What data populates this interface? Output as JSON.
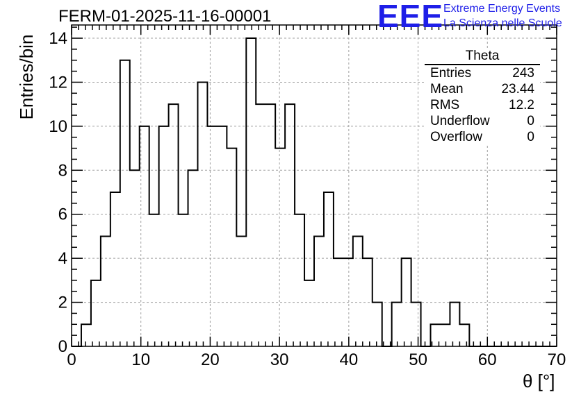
{
  "header": {
    "title": "FERM-01-2025-11-16-00001",
    "logo_mark": "EEE",
    "logo_line1": "Extreme Energy Events",
    "logo_line2": "La Scienza nelle Scuole",
    "logo_color": "#1e1ee8"
  },
  "stats_box": {
    "name": "Theta",
    "rows": [
      {
        "label": "Entries",
        "value": "243"
      },
      {
        "label": "Mean",
        "value": "23.44"
      },
      {
        "label": "RMS",
        "value": "12.2"
      },
      {
        "label": "Underflow",
        "value": "0"
      },
      {
        "label": "Overflow",
        "value": "0"
      }
    ]
  },
  "chart_data": {
    "type": "histogram",
    "title": "FERM-01-2025-11-16-00001",
    "xlabel": "θ [°]",
    "ylabel": "Entries/bin",
    "xlim": [
      0,
      70
    ],
    "ylim": [
      0,
      14.6
    ],
    "grid": true,
    "bin_width": 1.4,
    "x_ticks": [
      0,
      10,
      20,
      30,
      40,
      50,
      60,
      70
    ],
    "y_ticks": [
      0,
      2,
      4,
      6,
      8,
      10,
      12,
      14
    ],
    "bin_low_edges": [
      0,
      1.4,
      2.8,
      4.2,
      5.6,
      7.0,
      8.4,
      9.8,
      11.2,
      12.6,
      14.0,
      15.4,
      16.8,
      18.2,
      19.6,
      21.0,
      22.4,
      23.8,
      25.2,
      26.6,
      28.0,
      29.4,
      30.8,
      32.2,
      33.6,
      35.0,
      36.4,
      37.8,
      39.2,
      40.6,
      42.0,
      43.4,
      44.8,
      46.2,
      47.6,
      49.0,
      50.4,
      51.8,
      53.2,
      54.6,
      56.0,
      57.4,
      58.8,
      60.2,
      61.6,
      63.0,
      64.4,
      65.8,
      67.2,
      68.6
    ],
    "counts": [
      0,
      1,
      3,
      5,
      7,
      13,
      8,
      10,
      6,
      10,
      11,
      6,
      8,
      12,
      10,
      10,
      9,
      5,
      14,
      11,
      11,
      9,
      11,
      6,
      3,
      5,
      7,
      4,
      4,
      5,
      4,
      2,
      0,
      2,
      4,
      2,
      0,
      1,
      1,
      2,
      1,
      0,
      0,
      0,
      0,
      0,
      0,
      0,
      0,
      0
    ],
    "colors": {
      "line": "#000000",
      "grid": "#a0a0a0"
    }
  }
}
